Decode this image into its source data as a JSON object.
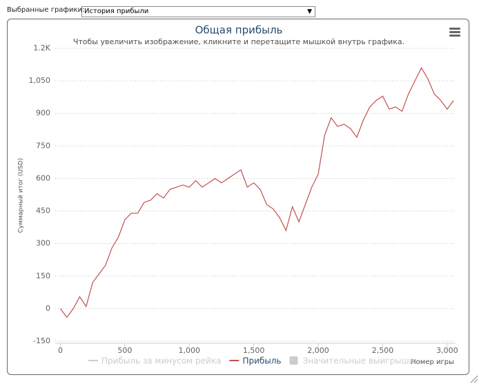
{
  "controls": {
    "label": "Выбранные графики:",
    "selected": "История прибыли"
  },
  "chart_data": {
    "type": "line",
    "title": "Общая прибыль",
    "subtitle": "Чтобы увеличить изображение, кликните и перетащите мышкой внутрь графика.",
    "y_label": "Суммарный итог (USD)",
    "x_label": "Номер игры",
    "x": [
      0,
      50,
      100,
      150,
      200,
      250,
      300,
      350,
      400,
      450,
      500,
      550,
      600,
      650,
      700,
      750,
      800,
      850,
      900,
      950,
      1000,
      1050,
      1100,
      1150,
      1200,
      1250,
      1300,
      1350,
      1400,
      1450,
      1500,
      1550,
      1600,
      1650,
      1700,
      1750,
      1800,
      1850,
      1900,
      1950,
      2000,
      2050,
      2100,
      2150,
      2200,
      2250,
      2300,
      2350,
      2400,
      2450,
      2500,
      2550,
      2600,
      2650,
      2700,
      2750,
      2800,
      2850,
      2900,
      2950,
      3000,
      3050
    ],
    "series": [
      {
        "name": "Прибыль за минусом рейка",
        "color": "#cccccc",
        "visible": false
      },
      {
        "name": "Прибыль",
        "color": "#c0504d",
        "visible": true,
        "values": [
          0,
          -40,
          0,
          55,
          10,
          120,
          160,
          200,
          280,
          330,
          410,
          440,
          440,
          490,
          500,
          530,
          510,
          550,
          560,
          570,
          560,
          590,
          560,
          580,
          600,
          580,
          600,
          620,
          640,
          560,
          580,
          550,
          480,
          460,
          420,
          360,
          470,
          400,
          480,
          560,
          620,
          800,
          880,
          840,
          850,
          830,
          790,
          870,
          930,
          960,
          980,
          920,
          930,
          910,
          990,
          1050,
          1110,
          1060,
          990,
          960,
          920,
          960
        ]
      },
      {
        "name": "Значительные выигрыши",
        "color": "#cccccc",
        "visible": false
      }
    ],
    "xlim": [
      -40,
      3065
    ],
    "ylim": [
      -150,
      1200
    ],
    "xticks": [
      0,
      500,
      {
        "value": 1000,
        "label": "1,000"
      },
      {
        "value": 1500,
        "label": "1,500"
      },
      {
        "value": 2000,
        "label": "2,000"
      },
      {
        "value": 2500,
        "label": "2,500"
      },
      {
        "value": 3000,
        "label": "3,000"
      }
    ],
    "yticks": [
      -150,
      0,
      150,
      300,
      450,
      600,
      750,
      900,
      {
        "value": 1050,
        "label": "1,050"
      },
      {
        "value": 1200,
        "label": "1.2K"
      }
    ],
    "grid": true
  }
}
